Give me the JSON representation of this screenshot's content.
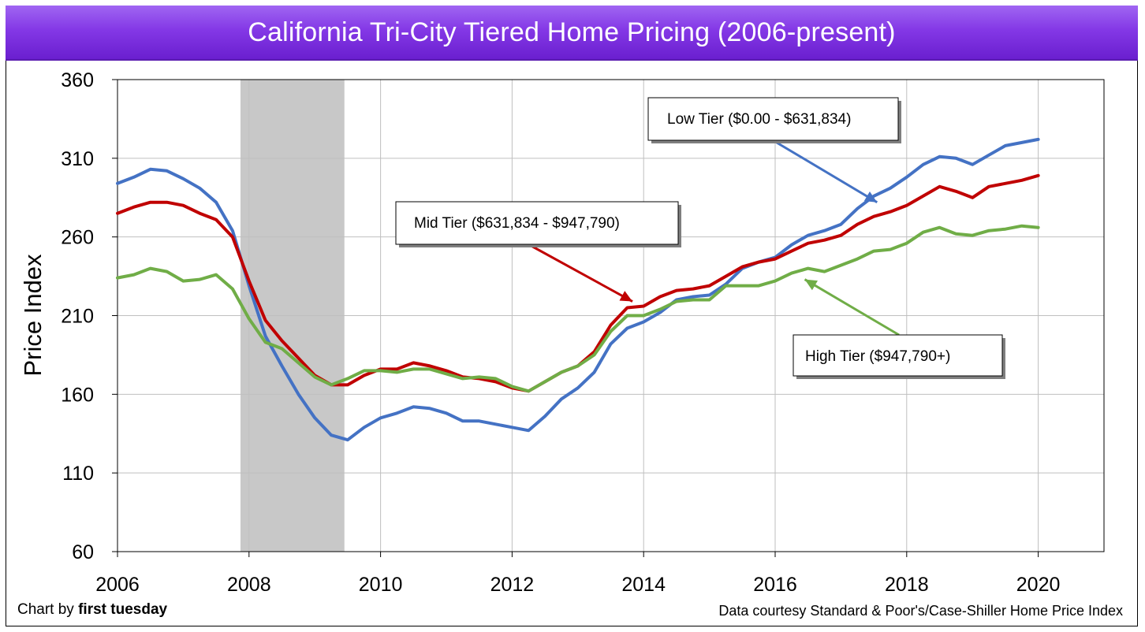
{
  "title": "California Tri-City Tiered Home Pricing (2006-present)",
  "credits": {
    "left_prefix": "Chart by ",
    "left_brand": "first tuesday",
    "right": "Data courtesy Standard & Poor's/Case-Shiller Home Price Index"
  },
  "chart_data": {
    "type": "line",
    "title": "California Tri-City Tiered Home Pricing (2006-present)",
    "xlabel": "",
    "ylabel": "Price Index",
    "xlim": [
      2006,
      2021
    ],
    "ylim": [
      60,
      360
    ],
    "x_ticks": [
      2006,
      2008,
      2010,
      2012,
      2014,
      2016,
      2018,
      2020
    ],
    "y_ticks": [
      60,
      110,
      160,
      210,
      260,
      310,
      360
    ],
    "grid": true,
    "shaded_region": {
      "from": 2007.87,
      "to": 2009.45,
      "color": "#c8c8c8"
    },
    "series": [
      {
        "name": "Low Tier ($0.00 - $631,834)",
        "color": "#4472c4",
        "x": [
          2006.0,
          2006.25,
          2006.5,
          2006.75,
          2007.0,
          2007.25,
          2007.5,
          2007.75,
          2008.0,
          2008.25,
          2008.5,
          2008.75,
          2009.0,
          2009.25,
          2009.5,
          2009.75,
          2010.0,
          2010.25,
          2010.5,
          2010.75,
          2011.0,
          2011.25,
          2011.5,
          2011.75,
          2012.0,
          2012.25,
          2012.5,
          2012.75,
          2013.0,
          2013.25,
          2013.5,
          2013.75,
          2014.0,
          2014.25,
          2014.5,
          2014.75,
          2015.0,
          2015.25,
          2015.5,
          2015.75,
          2016.0,
          2016.25,
          2016.5,
          2016.75,
          2017.0,
          2017.25,
          2017.5,
          2017.75,
          2018.0,
          2018.25,
          2018.5,
          2018.75,
          2019.0,
          2019.25,
          2019.5,
          2019.75,
          2020.0
        ],
        "values": [
          294,
          298,
          303,
          302,
          297,
          291,
          282,
          264,
          229,
          197,
          178,
          160,
          145,
          134,
          131,
          139,
          145,
          148,
          152,
          151,
          148,
          143,
          143,
          141,
          139,
          137,
          146,
          157,
          164,
          174,
          192,
          202,
          206,
          212,
          220,
          222,
          223,
          230,
          240,
          244,
          247,
          255,
          261,
          264,
          268,
          278,
          286,
          291,
          298,
          306,
          311,
          310,
          306,
          312,
          318,
          320,
          322
        ]
      },
      {
        "name": "Mid Tier ($631,834 - $947,790)",
        "color": "#c00000",
        "x": [
          2006.0,
          2006.25,
          2006.5,
          2006.75,
          2007.0,
          2007.25,
          2007.5,
          2007.75,
          2008.0,
          2008.25,
          2008.5,
          2008.75,
          2009.0,
          2009.25,
          2009.5,
          2009.75,
          2010.0,
          2010.25,
          2010.5,
          2010.75,
          2011.0,
          2011.25,
          2011.5,
          2011.75,
          2012.0,
          2012.25,
          2012.5,
          2012.75,
          2013.0,
          2013.25,
          2013.5,
          2013.75,
          2014.0,
          2014.25,
          2014.5,
          2014.75,
          2015.0,
          2015.25,
          2015.5,
          2015.75,
          2016.0,
          2016.25,
          2016.5,
          2016.75,
          2017.0,
          2017.25,
          2017.5,
          2017.75,
          2018.0,
          2018.25,
          2018.5,
          2018.75,
          2019.0,
          2019.25,
          2019.5,
          2019.75,
          2020.0
        ],
        "values": [
          275,
          279,
          282,
          282,
          280,
          275,
          271,
          260,
          232,
          207,
          194,
          183,
          172,
          166,
          166,
          172,
          176,
          176,
          180,
          178,
          175,
          171,
          170,
          168,
          164,
          162,
          168,
          174,
          178,
          187,
          204,
          215,
          216,
          222,
          226,
          227,
          229,
          235,
          241,
          244,
          246,
          251,
          256,
          258,
          261,
          268,
          273,
          276,
          280,
          286,
          292,
          289,
          285,
          292,
          294,
          296,
          299
        ]
      },
      {
        "name": "High Tier ($947,790+)",
        "color": "#70ad47",
        "x": [
          2006.0,
          2006.25,
          2006.5,
          2006.75,
          2007.0,
          2007.25,
          2007.5,
          2007.75,
          2008.0,
          2008.25,
          2008.5,
          2008.75,
          2009.0,
          2009.25,
          2009.5,
          2009.75,
          2010.0,
          2010.25,
          2010.5,
          2010.75,
          2011.0,
          2011.25,
          2011.5,
          2011.75,
          2012.0,
          2012.25,
          2012.5,
          2012.75,
          2013.0,
          2013.25,
          2013.5,
          2013.75,
          2014.0,
          2014.25,
          2014.5,
          2014.75,
          2015.0,
          2015.25,
          2015.5,
          2015.75,
          2016.0,
          2016.25,
          2016.5,
          2016.75,
          2017.0,
          2017.25,
          2017.5,
          2017.75,
          2018.0,
          2018.25,
          2018.5,
          2018.75,
          2019.0,
          2019.25,
          2019.5,
          2019.75,
          2020.0
        ],
        "values": [
          234,
          236,
          240,
          238,
          232,
          233,
          236,
          227,
          208,
          193,
          189,
          180,
          171,
          166,
          170,
          175,
          175,
          174,
          176,
          176,
          173,
          170,
          171,
          170,
          165,
          162,
          168,
          174,
          178,
          185,
          200,
          210,
          210,
          214,
          219,
          220,
          220,
          229,
          229,
          229,
          232,
          237,
          240,
          238,
          242,
          246,
          251,
          252,
          256,
          263,
          266,
          262,
          261,
          264,
          265,
          267,
          266
        ]
      }
    ],
    "annotations": [
      {
        "label": "Low Tier ($0.00 - $631,834)",
        "series": "Low Tier ($0.00 - $631,834)",
        "point_x": 2017.55,
        "point_y": 282
      },
      {
        "label": "Mid Tier ($631,834 - $947,790)",
        "series": "Mid Tier ($631,834 - $947,790)",
        "point_x": 2013.83,
        "point_y": 219
      },
      {
        "label": "High Tier ($947,790+)",
        "series": "High Tier ($947,790+)",
        "point_x": 2016.45,
        "point_y": 233
      }
    ]
  }
}
